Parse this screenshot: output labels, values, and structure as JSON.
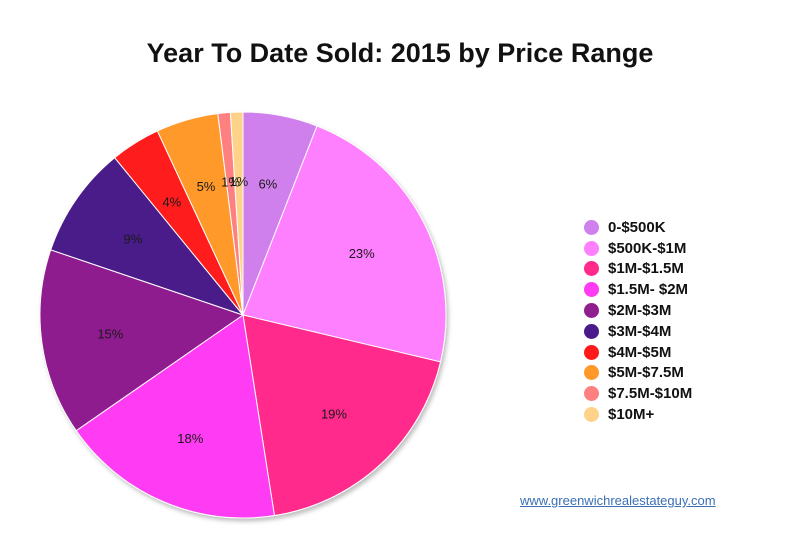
{
  "chart_data": {
    "type": "pie",
    "title": "Year To Date Sold: 2015 by Price Range",
    "categories": [
      "0-$500K",
      "$500K-$1M",
      "$1M-$1.5M",
      "$1.5M- $2M",
      "$2M-$3M",
      "$3M-$4M",
      "$4M-$5M",
      "$5M-$7.5M",
      "$7.5M-$10M",
      "$10M+"
    ],
    "values": [
      6,
      23,
      19,
      18,
      15,
      9,
      4,
      5,
      1,
      1
    ],
    "value_labels": [
      "6%",
      "23%",
      "19%",
      "18%",
      "15%",
      "9%",
      "4%",
      "5%",
      "1%",
      "1%"
    ],
    "colors": [
      "#d080ec",
      "#ff80ff",
      "#ff2a8c",
      "#ff3bf3",
      "#8f1f8f",
      "#4a1a8a",
      "#ff1a1a",
      "#ff9a2a",
      "#ff8080",
      "#ffd28a"
    ],
    "legend_position": "right"
  },
  "footer": {
    "link_text": "www.greenwichrealestateguy.com"
  }
}
